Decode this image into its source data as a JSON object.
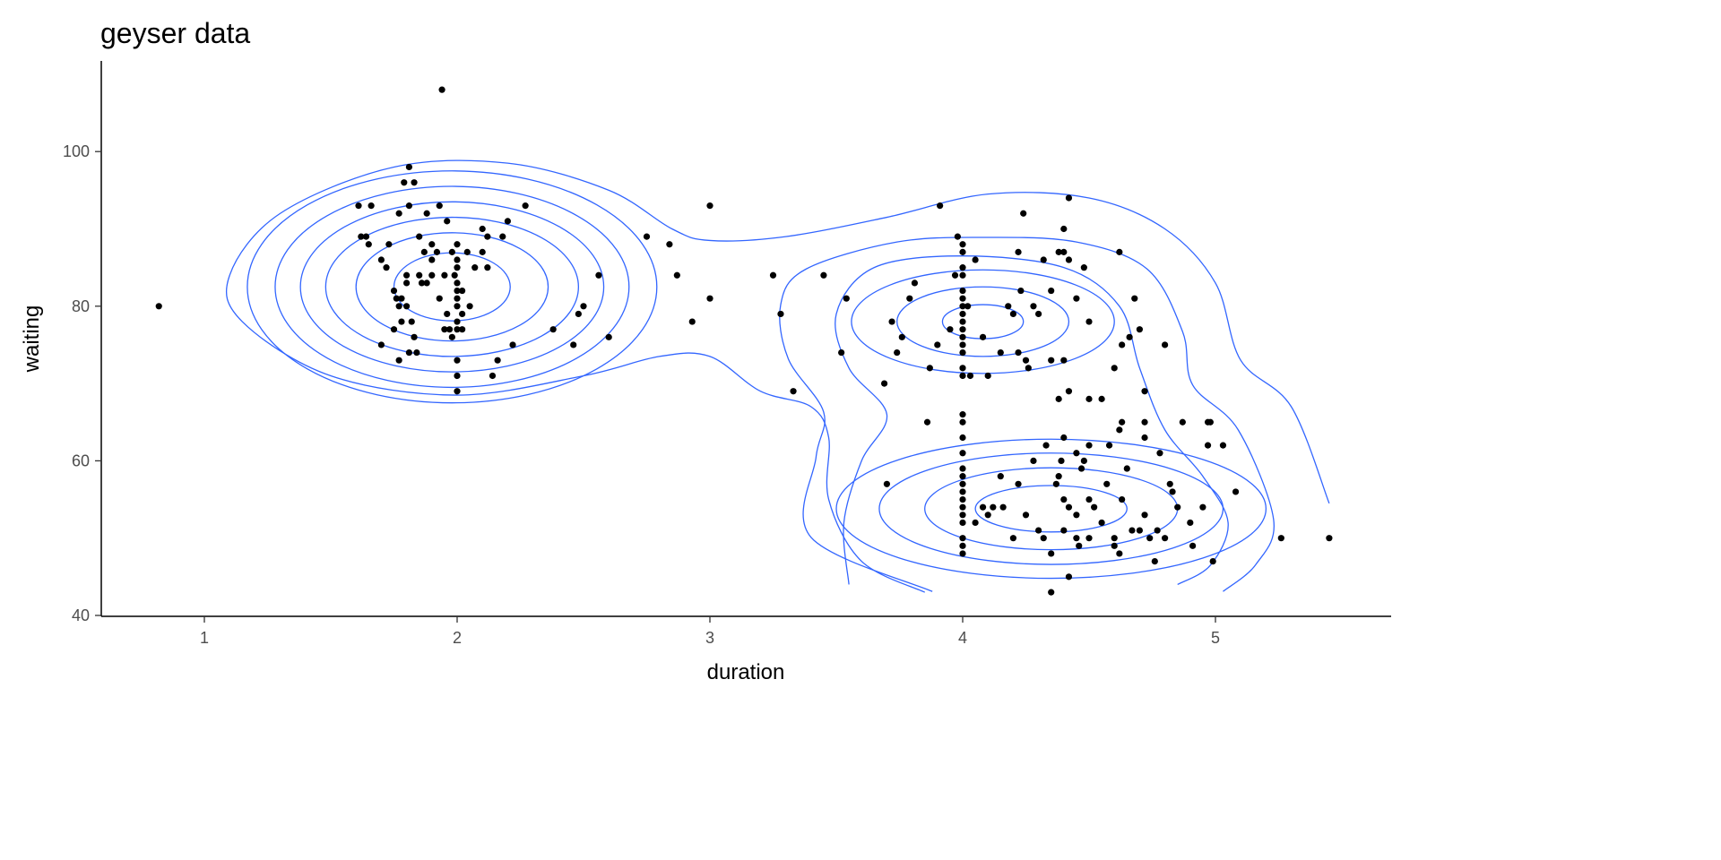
{
  "chart_data": {
    "type": "scatter",
    "title": "geyser data",
    "xlabel": "duration",
    "ylabel": "waiting",
    "xlim": [
      0.6,
      5.65
    ],
    "ylim": [
      40,
      111
    ],
    "xticks": [
      1,
      2,
      3,
      4,
      5
    ],
    "yticks": [
      40,
      60,
      80,
      100
    ],
    "grid": false,
    "point_color": "#000000",
    "contour_color": "#3366FF",
    "points": [
      [
        0.82,
        80
      ],
      [
        1.94,
        108
      ],
      [
        1.61,
        93
      ],
      [
        1.66,
        93
      ],
      [
        1.62,
        89
      ],
      [
        1.64,
        89
      ],
      [
        1.65,
        88
      ],
      [
        1.7,
        86
      ],
      [
        1.72,
        85
      ],
      [
        1.73,
        88
      ],
      [
        1.75,
        82
      ],
      [
        1.76,
        81
      ],
      [
        1.78,
        81
      ],
      [
        1.77,
        92
      ],
      [
        1.79,
        96
      ],
      [
        1.81,
        93
      ],
      [
        1.81,
        98
      ],
      [
        1.83,
        96
      ],
      [
        1.8,
        84
      ],
      [
        1.8,
        83
      ],
      [
        1.8,
        80
      ],
      [
        1.82,
        78
      ],
      [
        1.84,
        74
      ],
      [
        1.81,
        74
      ],
      [
        1.78,
        78
      ],
      [
        1.7,
        75
      ],
      [
        1.77,
        73
      ],
      [
        1.85,
        89
      ],
      [
        1.85,
        84
      ],
      [
        1.86,
        83
      ],
      [
        1.88,
        92
      ],
      [
        1.88,
        83
      ],
      [
        1.9,
        84
      ],
      [
        1.9,
        88
      ],
      [
        1.92,
        87
      ],
      [
        1.93,
        81
      ],
      [
        1.93,
        93
      ],
      [
        1.95,
        84
      ],
      [
        1.96,
        91
      ],
      [
        1.96,
        79
      ],
      [
        1.97,
        77
      ],
      [
        1.98,
        76
      ],
      [
        1.98,
        87
      ],
      [
        1.99,
        84
      ],
      [
        2.0,
        88
      ],
      [
        2.0,
        86
      ],
      [
        2.0,
        85
      ],
      [
        2.0,
        83
      ],
      [
        2.0,
        82
      ],
      [
        2.0,
        81
      ],
      [
        2.0,
        80
      ],
      [
        2.0,
        78
      ],
      [
        2.0,
        77
      ],
      [
        2.0,
        73
      ],
      [
        2.0,
        71
      ],
      [
        2.0,
        69
      ],
      [
        2.02,
        82
      ],
      [
        2.02,
        79
      ],
      [
        2.02,
        77
      ],
      [
        2.04,
        87
      ],
      [
        2.05,
        80
      ],
      [
        2.07,
        85
      ],
      [
        2.1,
        87
      ],
      [
        2.1,
        90
      ],
      [
        2.12,
        85
      ],
      [
        2.12,
        89
      ],
      [
        2.14,
        71
      ],
      [
        2.16,
        73
      ],
      [
        2.18,
        89
      ],
      [
        2.2,
        91
      ],
      [
        2.22,
        75
      ],
      [
        2.27,
        93
      ],
      [
        2.38,
        77
      ],
      [
        2.46,
        75
      ],
      [
        2.48,
        79
      ],
      [
        2.5,
        80
      ],
      [
        2.56,
        84
      ],
      [
        2.6,
        76
      ],
      [
        1.87,
        87
      ],
      [
        1.9,
        86
      ],
      [
        1.95,
        77
      ],
      [
        1.83,
        76
      ],
      [
        1.75,
        77
      ],
      [
        1.77,
        80
      ],
      [
        2.75,
        89
      ],
      [
        2.84,
        88
      ],
      [
        2.87,
        84
      ],
      [
        2.93,
        78
      ],
      [
        3.0,
        93
      ],
      [
        3.0,
        81
      ],
      [
        3.25,
        84
      ],
      [
        3.28,
        79
      ],
      [
        3.33,
        69
      ],
      [
        3.45,
        84
      ],
      [
        3.52,
        74
      ],
      [
        3.54,
        81
      ],
      [
        3.69,
        70
      ],
      [
        3.7,
        57
      ],
      [
        3.72,
        78
      ],
      [
        3.74,
        74
      ],
      [
        3.76,
        76
      ],
      [
        3.79,
        81
      ],
      [
        3.81,
        83
      ],
      [
        3.86,
        65
      ],
      [
        3.87,
        72
      ],
      [
        3.9,
        75
      ],
      [
        3.91,
        93
      ],
      [
        3.95,
        77
      ],
      [
        3.97,
        84
      ],
      [
        3.98,
        89
      ],
      [
        4.0,
        88
      ],
      [
        4.0,
        87
      ],
      [
        4.0,
        85
      ],
      [
        4.0,
        84
      ],
      [
        4.0,
        82
      ],
      [
        4.0,
        81
      ],
      [
        4.0,
        80
      ],
      [
        4.0,
        79
      ],
      [
        4.0,
        78
      ],
      [
        4.0,
        77
      ],
      [
        4.0,
        76
      ],
      [
        4.0,
        75
      ],
      [
        4.0,
        74
      ],
      [
        4.0,
        72
      ],
      [
        4.0,
        71
      ],
      [
        4.0,
        66
      ],
      [
        4.0,
        65
      ],
      [
        4.0,
        63
      ],
      [
        4.02,
        80
      ],
      [
        4.03,
        71
      ],
      [
        4.05,
        86
      ],
      [
        4.08,
        76
      ],
      [
        4.1,
        71
      ],
      [
        4.15,
        74
      ],
      [
        4.18,
        80
      ],
      [
        4.2,
        79
      ],
      [
        4.22,
        87
      ],
      [
        4.22,
        74
      ],
      [
        4.23,
        82
      ],
      [
        4.24,
        92
      ],
      [
        4.25,
        73
      ],
      [
        4.26,
        72
      ],
      [
        4.28,
        80
      ],
      [
        4.3,
        79
      ],
      [
        4.32,
        86
      ],
      [
        4.35,
        82
      ],
      [
        4.35,
        73
      ],
      [
        4.38,
        87
      ],
      [
        4.4,
        87
      ],
      [
        4.4,
        90
      ],
      [
        4.4,
        73
      ],
      [
        4.42,
        86
      ],
      [
        4.45,
        81
      ],
      [
        4.48,
        85
      ],
      [
        4.5,
        78
      ],
      [
        4.38,
        68
      ],
      [
        4.42,
        69
      ],
      [
        4.5,
        68
      ],
      [
        4.55,
        68
      ],
      [
        4.6,
        72
      ],
      [
        4.62,
        87
      ],
      [
        4.63,
        75
      ],
      [
        4.66,
        76
      ],
      [
        4.68,
        81
      ],
      [
        4.7,
        77
      ],
      [
        4.8,
        75
      ],
      [
        4.72,
        69
      ],
      [
        4.72,
        65
      ],
      [
        4.72,
        63
      ],
      [
        4.62,
        64
      ],
      [
        4.63,
        65
      ],
      [
        4.58,
        62
      ],
      [
        4.42,
        94
      ],
      [
        4.0,
        61
      ],
      [
        4.0,
        59
      ],
      [
        4.0,
        58
      ],
      [
        4.0,
        57
      ],
      [
        4.0,
        56
      ],
      [
        4.0,
        55
      ],
      [
        4.0,
        54
      ],
      [
        4.0,
        53
      ],
      [
        4.0,
        52
      ],
      [
        4.0,
        50
      ],
      [
        4.0,
        49
      ],
      [
        4.0,
        48
      ],
      [
        4.05,
        52
      ],
      [
        4.08,
        54
      ],
      [
        4.1,
        53
      ],
      [
        4.12,
        54
      ],
      [
        4.15,
        58
      ],
      [
        4.16,
        54
      ],
      [
        4.2,
        50
      ],
      [
        4.22,
        57
      ],
      [
        4.25,
        53
      ],
      [
        4.28,
        60
      ],
      [
        4.3,
        51
      ],
      [
        4.32,
        50
      ],
      [
        4.33,
        62
      ],
      [
        4.35,
        48
      ],
      [
        4.35,
        43
      ],
      [
        4.37,
        57
      ],
      [
        4.38,
        58
      ],
      [
        4.39,
        60
      ],
      [
        4.4,
        55
      ],
      [
        4.4,
        51
      ],
      [
        4.42,
        45
      ],
      [
        4.42,
        54
      ],
      [
        4.45,
        50
      ],
      [
        4.45,
        53
      ],
      [
        4.45,
        61
      ],
      [
        4.46,
        49
      ],
      [
        4.47,
        59
      ],
      [
        4.48,
        60
      ],
      [
        4.5,
        62
      ],
      [
        4.5,
        55
      ],
      [
        4.52,
        54
      ],
      [
        4.55,
        52
      ],
      [
        4.57,
        57
      ],
      [
        4.6,
        49
      ],
      [
        4.62,
        48
      ],
      [
        4.63,
        55
      ],
      [
        4.65,
        59
      ],
      [
        4.67,
        51
      ],
      [
        4.7,
        51
      ],
      [
        4.72,
        53
      ],
      [
        4.74,
        50
      ],
      [
        4.76,
        47
      ],
      [
        4.78,
        61
      ],
      [
        4.8,
        50
      ],
      [
        4.82,
        57
      ],
      [
        4.83,
        56
      ],
      [
        4.85,
        54
      ],
      [
        4.87,
        65
      ],
      [
        4.9,
        52
      ],
      [
        4.91,
        49
      ],
      [
        4.95,
        54
      ],
      [
        4.97,
        65
      ],
      [
        4.98,
        65
      ],
      [
        4.97,
        62
      ],
      [
        4.99,
        47
      ],
      [
        5.03,
        62
      ],
      [
        5.08,
        56
      ],
      [
        5.26,
        50
      ],
      [
        5.45,
        50
      ],
      [
        4.4,
        63
      ],
      [
        4.77,
        51
      ],
      [
        4.6,
        50
      ],
      [
        4.5,
        50
      ]
    ],
    "density_contours": {
      "ellipses": [
        {
          "cx": 1.98,
          "cy": 82.5,
          "rx": 0.23,
          "ry": 4.4
        },
        {
          "cx": 1.98,
          "cy": 82.5,
          "rx": 0.38,
          "ry": 7.0
        },
        {
          "cx": 1.98,
          "cy": 82.5,
          "rx": 0.5,
          "ry": 9.0
        },
        {
          "cx": 1.98,
          "cy": 82.5,
          "rx": 0.6,
          "ry": 11.0
        },
        {
          "cx": 1.98,
          "cy": 82.5,
          "rx": 0.7,
          "ry": 13.0
        },
        {
          "cx": 1.98,
          "cy": 82.5,
          "rx": 0.81,
          "ry": 15.0
        },
        {
          "cx": 4.08,
          "cy": 78,
          "rx": 0.16,
          "ry": 2.2
        },
        {
          "cx": 4.08,
          "cy": 78,
          "rx": 0.34,
          "ry": 4.5
        },
        {
          "cx": 4.08,
          "cy": 78,
          "rx": 0.52,
          "ry": 6.7
        },
        {
          "cx": 4.35,
          "cy": 53.8,
          "rx": 0.3,
          "ry": 3.0
        },
        {
          "cx": 4.35,
          "cy": 53.8,
          "rx": 0.5,
          "ry": 5.3
        },
        {
          "cx": 4.35,
          "cy": 53.8,
          "rx": 0.68,
          "ry": 7.2
        },
        {
          "cx": 4.35,
          "cy": 53.8,
          "rx": 0.85,
          "ry": 9.0
        }
      ],
      "lines": [
        [
          [
            3.85,
            43
          ],
          [
            3.6,
            47
          ],
          [
            3.47,
            55
          ],
          [
            3.47,
            63
          ],
          [
            3.4,
            67
          ],
          [
            3.2,
            69
          ],
          [
            3.0,
            73.5
          ],
          [
            2.8,
            73.5
          ],
          [
            2.5,
            71
          ],
          [
            2.0,
            68.5
          ],
          [
            1.5,
            71
          ],
          [
            1.15,
            78
          ],
          [
            1.1,
            84
          ],
          [
            1.3,
            92
          ],
          [
            1.75,
            98
          ],
          [
            2.2,
            98.5
          ],
          [
            2.6,
            95
          ],
          [
            2.85,
            90
          ],
          [
            3.0,
            88.5
          ],
          [
            3.3,
            89
          ],
          [
            3.7,
            91.5
          ],
          [
            4.1,
            94.5
          ],
          [
            4.5,
            94
          ],
          [
            4.8,
            90
          ],
          [
            5.0,
            83
          ],
          [
            5.1,
            73
          ],
          [
            5.3,
            67
          ],
          [
            5.45,
            54.5
          ]
        ],
        [
          [
            3.88,
            43.1
          ],
          [
            3.4,
            50.1
          ],
          [
            3.42,
            60.5
          ],
          [
            3.45,
            66.3
          ],
          [
            3.31,
            73.2
          ],
          [
            3.28,
            80.2
          ],
          [
            3.38,
            84.8
          ],
          [
            3.74,
            88.3
          ],
          [
            4.09,
            88.9
          ],
          [
            4.45,
            88.3
          ],
          [
            4.73,
            84.8
          ],
          [
            4.87,
            76.7
          ],
          [
            4.91,
            69.8
          ],
          [
            5.09,
            64
          ],
          [
            5.23,
            52.4
          ],
          [
            5.16,
            46.6
          ],
          [
            5.03,
            43.1
          ]
        ],
        [
          [
            3.55,
            44
          ],
          [
            3.53,
            52
          ],
          [
            3.6,
            60
          ],
          [
            3.7,
            66
          ],
          [
            3.55,
            72
          ],
          [
            3.5,
            79
          ],
          [
            3.65,
            85
          ],
          [
            4.0,
            86.5
          ],
          [
            4.4,
            85
          ],
          [
            4.62,
            80
          ],
          [
            4.7,
            72
          ],
          [
            4.8,
            64
          ],
          [
            4.95,
            58
          ],
          [
            5.05,
            52
          ],
          [
            4.98,
            46.5
          ],
          [
            4.85,
            44
          ]
        ]
      ]
    }
  }
}
